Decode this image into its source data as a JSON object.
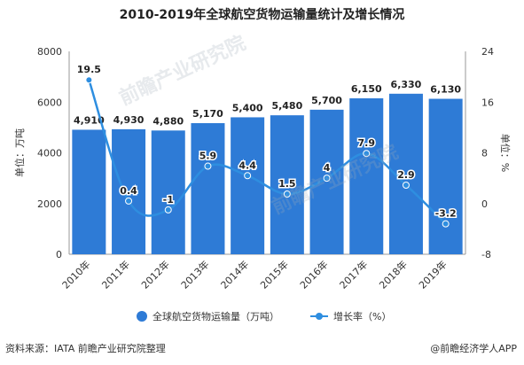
{
  "title": "2010-2019年全球航空货物运输量统计及增长情况",
  "source": "资料来源：IATA 前瞻产业研究院整理",
  "brand": "@前瞻经济学人APP",
  "watermark": "前瞻产业研究院",
  "colors": {
    "bar": "#2e7bd6",
    "line": "#2e8ee0",
    "axis": "#999999",
    "grid": "#e8e8e8"
  },
  "chart_data": {
    "type": "bar",
    "categories": [
      "2010年",
      "2011年",
      "2012年",
      "2013年",
      "2014年",
      "2015年",
      "2016年",
      "2017年",
      "2018年",
      "2019年"
    ],
    "series": [
      {
        "name": "全球航空货物运输量（万吨）",
        "type": "bar",
        "axis": "left",
        "values": [
          4910,
          4930,
          4880,
          5170,
          5400,
          5480,
          5700,
          6150,
          6330,
          6130
        ],
        "labels": [
          "4,910",
          "4,930",
          "4,880",
          "5,170",
          "5,400",
          "5,480",
          "5,700",
          "6,150",
          "6,330",
          "6,130"
        ]
      },
      {
        "name": "增长率（%）",
        "type": "line",
        "axis": "right",
        "values": [
          19.5,
          0.4,
          -1,
          5.9,
          4.4,
          1.5,
          4,
          7.9,
          2.9,
          -3.2
        ],
        "labels": [
          "19.5",
          "0.4",
          "-1",
          "5.9",
          "4.4",
          "1.5",
          "4",
          "7.9",
          "2.9",
          "-3.2"
        ]
      }
    ],
    "ylabel": "单位：万吨",
    "y2label": "单位：%",
    "ylim": [
      0,
      8000
    ],
    "yticks": [
      0,
      2000,
      4000,
      6000,
      8000
    ],
    "y2lim": [
      -8,
      24
    ],
    "y2ticks": [
      -8,
      0,
      8,
      16,
      24
    ],
    "legend": "bottom-center"
  }
}
